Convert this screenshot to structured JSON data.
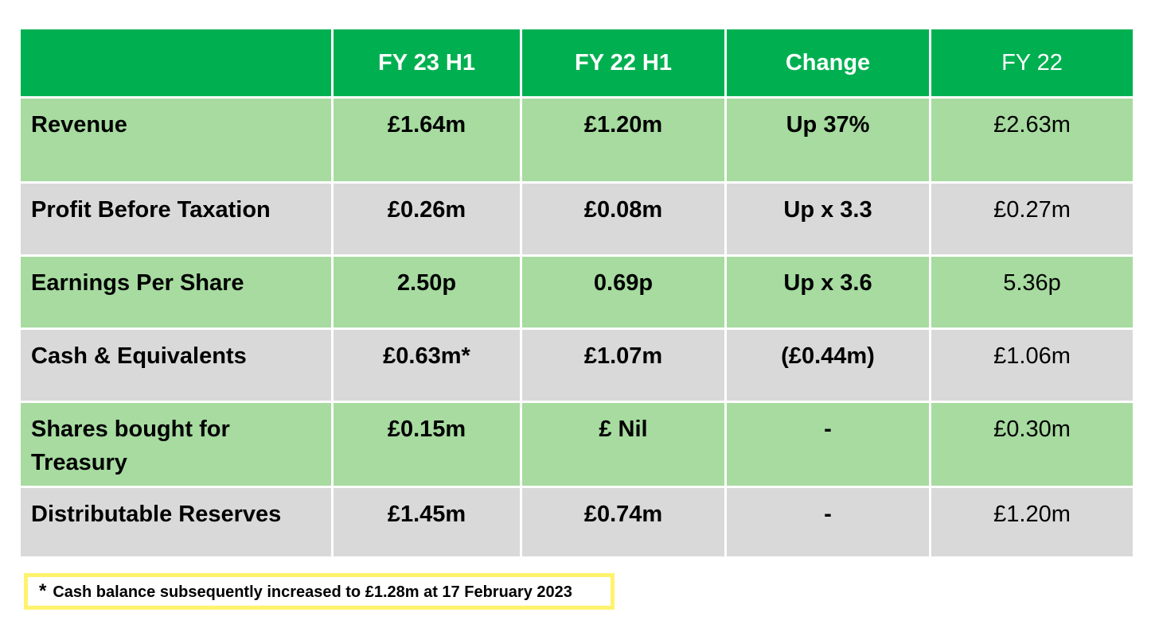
{
  "table": {
    "headers": [
      "",
      "FY 23 H1",
      "FY 22 H1",
      "Change",
      "FY 22"
    ],
    "rows": [
      {
        "label": "Revenue",
        "fy23h1": "£1.64m",
        "fy22h1": "£1.20m",
        "change": "Up 37%",
        "fy22": "£2.63m"
      },
      {
        "label": "Profit Before Taxation",
        "fy23h1": "£0.26m",
        "fy22h1": "£0.08m",
        "change": "Up x 3.3",
        "fy22": "£0.27m"
      },
      {
        "label": "Earnings Per Share",
        "fy23h1": "2.50p",
        "fy22h1": "0.69p",
        "change": "Up x 3.6",
        "fy22": "5.36p"
      },
      {
        "label": "Cash & Equivalents",
        "fy23h1": "£0.63m*",
        "fy22h1": "£1.07m",
        "change": "(£0.44m)",
        "fy22": "£1.06m"
      },
      {
        "label": "Shares bought for Treasury",
        "fy23h1": "£0.15m",
        "fy22h1": "£ Nil",
        "change": "-",
        "fy22": "£0.30m"
      },
      {
        "label": "Distributable Reserves",
        "fy23h1": "£1.45m",
        "fy22h1": "£0.74m",
        "change": "-",
        "fy22": "£1.20m"
      }
    ]
  },
  "footnote": {
    "marker": "*",
    "text": "Cash balance subsequently increased to £1.28m at 17 February 2023"
  },
  "colors": {
    "header": "#00b050",
    "row_green": "#a7dba0",
    "row_grey": "#d9d9d9",
    "footnote_border": "#fff36e"
  }
}
